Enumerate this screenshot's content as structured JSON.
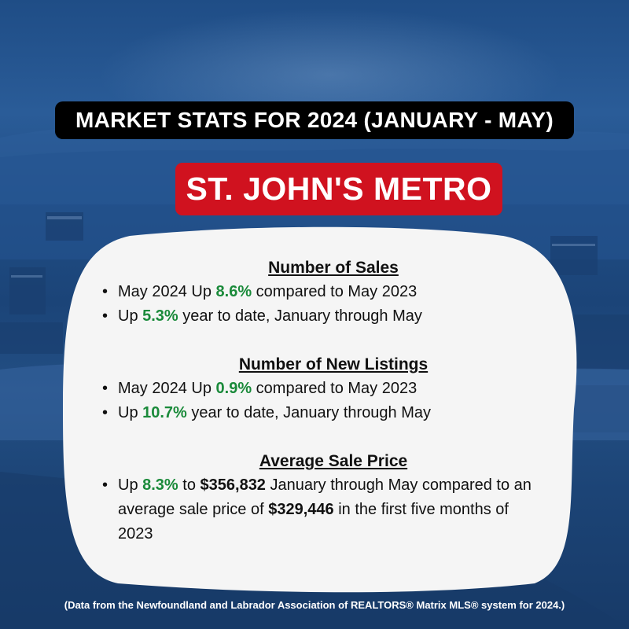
{
  "header": {
    "title": "MARKET STATS FOR 2024 (JANUARY - MAY)",
    "region": "ST. JOHN'S METRO"
  },
  "sections": {
    "sales": {
      "title": "Number of Sales",
      "items": [
        {
          "a": "May 2024 Up ",
          "v": "8.6%",
          "b": " compared to May 2023"
        },
        {
          "a": "Up ",
          "v": "5.3%",
          "b": " year to date, January through May"
        }
      ]
    },
    "listings": {
      "title": "Number of New Listings",
      "items": [
        {
          "a": "May 2024 Up ",
          "v": "0.9%",
          "b": " compared to May 2023"
        },
        {
          "a": "Up ",
          "v": "10.7%",
          "b": " year to date, January through May"
        }
      ]
    },
    "price": {
      "title": "Average Sale Price",
      "item": {
        "a": "Up ",
        "v": "8.3%",
        "b": " to ",
        "p1": "$356,832",
        "c": " January through May compared to an average sale price of ",
        "p2": "$329,446",
        "d": " in the first five months of 2023"
      }
    }
  },
  "footer": "(Data from the Newfoundland and Labrador Association of REALTORS® Matrix MLS® system for 2024.)",
  "colors": {
    "accent_green": "#1a8a3a",
    "banner_red": "#d0121f",
    "title_bg": "#000000",
    "background_blue": "#1f4d86"
  }
}
